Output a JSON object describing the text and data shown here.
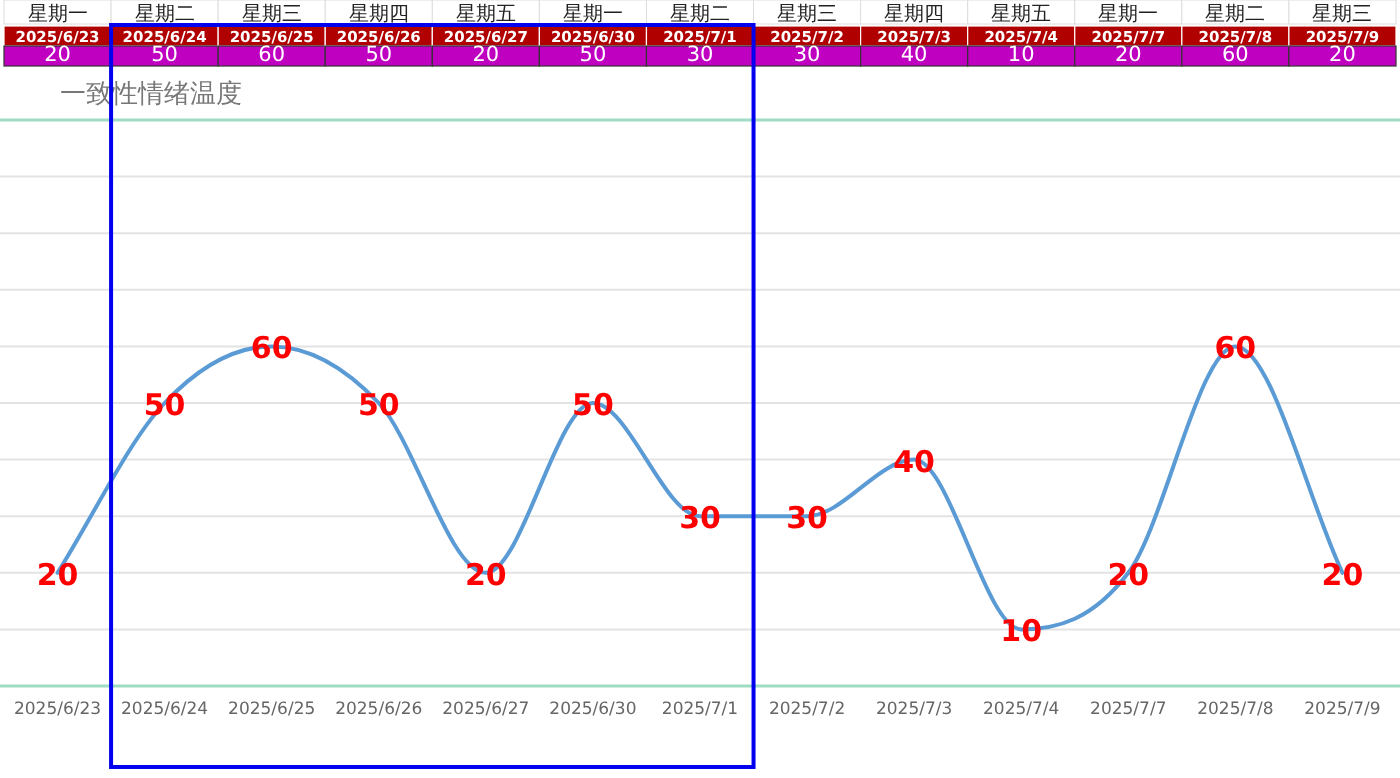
{
  "chart_data": {
    "type": "line",
    "title": "一致性情绪温度",
    "categories": [
      "2025/6/23",
      "2025/6/24",
      "2025/6/25",
      "2025/6/26",
      "2025/6/27",
      "2025/6/30",
      "2025/7/1",
      "2025/7/2",
      "2025/7/3",
      "2025/7/4",
      "2025/7/7",
      "2025/7/8",
      "2025/7/9"
    ],
    "series": [
      {
        "color": "#5b9bd5",
        "values": [
          20,
          50,
          60,
          50,
          20,
          50,
          30,
          30,
          40,
          10,
          20,
          60,
          20
        ],
        "value_labels": [
          "20",
          "50",
          "60",
          "50",
          "20",
          "50",
          "30",
          "30",
          "40",
          "10",
          "20",
          "60",
          "20"
        ]
      }
    ],
    "ylim": [
      0,
      100
    ],
    "yticks": [
      {
        "value": 0,
        "label": null
      },
      {
        "value": 10,
        "label": null
      },
      {
        "value": 20,
        "label": null
      },
      {
        "value": 30,
        "label": null
      },
      {
        "value": 40,
        "label": null
      },
      {
        "value": 50,
        "label": null
      },
      {
        "value": 60,
        "label": null
      },
      {
        "value": 70,
        "label": null
      },
      {
        "value": 80,
        "label": null
      },
      {
        "value": 90,
        "label": null
      },
      {
        "value": 100,
        "label": null
      }
    ],
    "tick_labels": "x",
    "grid": "y",
    "marker": "none",
    "annotations": [
      "星期一",
      "星期二",
      "星期三",
      "星期四",
      "星期五",
      "星期一",
      "星期二",
      "星期三",
      "星期四",
      "星期五",
      "星期一",
      "星期二",
      "星期三",
      "20",
      "50",
      "60",
      "50",
      "20",
      "50",
      "30",
      "30",
      "40",
      "10",
      "20",
      "60",
      "20"
    ]
  }
}
